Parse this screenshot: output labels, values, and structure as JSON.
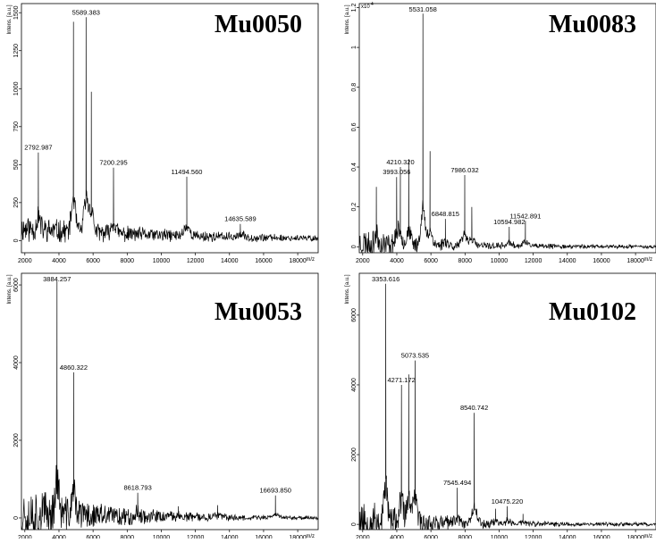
{
  "chart_data": [
    {
      "type": "line",
      "title": "Mu0050",
      "ylabel": "Intens. [a.u.]",
      "xlabel": "m/z",
      "xlim": [
        1800,
        19200
      ],
      "ylim": [
        -80,
        1560
      ],
      "xticks": [
        2000,
        4000,
        6000,
        8000,
        10000,
        12000,
        14000,
        16000,
        18000
      ],
      "yticks": [
        0,
        250,
        500,
        750,
        1000,
        1250,
        1500
      ],
      "y_exponent": "",
      "noise": {
        "base": 80,
        "decay": 10000,
        "amp": 110,
        "seed": 11
      },
      "peaks": [
        {
          "x": 2792.987,
          "y": 580,
          "label": "2792.987"
        },
        {
          "x": 4850,
          "y": 1440,
          "label": ""
        },
        {
          "x": 5589.383,
          "y": 1470,
          "label": "5589.383"
        },
        {
          "x": 5900,
          "y": 980,
          "label": ""
        },
        {
          "x": 7200.295,
          "y": 480,
          "label": "7200.295"
        },
        {
          "x": 11494.56,
          "y": 420,
          "label": "11494.560"
        },
        {
          "x": 14635.589,
          "y": 110,
          "label": "14635.589"
        }
      ],
      "grid": false,
      "legend": "none"
    },
    {
      "type": "line",
      "title": "Mu0083",
      "ylabel": "Intens. [a.u.]",
      "xlabel": "m/z",
      "xlim": [
        1800,
        19200
      ],
      "ylim": [
        -0.03,
        1.22
      ],
      "xticks": [
        2000,
        4000,
        6000,
        8000,
        10000,
        12000,
        14000,
        16000,
        18000
      ],
      "yticks": [
        0.0,
        0.2,
        0.4,
        0.6,
        0.8,
        1.0,
        1.2
      ],
      "y_exponent": "x10",
      "y_exponent_power": "4",
      "noise": {
        "base": 0.02,
        "decay": 5000,
        "amp": 0.09,
        "seed": 23
      },
      "peaks": [
        {
          "x": 2800,
          "y": 0.3,
          "label": ""
        },
        {
          "x": 3993.056,
          "y": 0.35,
          "label": "3993.056"
        },
        {
          "x": 4210.32,
          "y": 0.4,
          "label": "4210.320"
        },
        {
          "x": 4700,
          "y": 0.44,
          "label": ""
        },
        {
          "x": 5531.058,
          "y": 1.17,
          "label": "5531.058"
        },
        {
          "x": 5950,
          "y": 0.48,
          "label": ""
        },
        {
          "x": 6848.815,
          "y": 0.14,
          "label": "6848.815"
        },
        {
          "x": 7986.032,
          "y": 0.36,
          "label": "7986.032"
        },
        {
          "x": 8400,
          "y": 0.2,
          "label": ""
        },
        {
          "x": 10594.982,
          "y": 0.1,
          "label": "10594.982"
        },
        {
          "x": 11542.891,
          "y": 0.13,
          "label": "11542.891"
        }
      ],
      "grid": false,
      "legend": "none"
    },
    {
      "type": "line",
      "title": "Mu0053",
      "ylabel": "Intens. [a.u.]",
      "xlabel": "m/z",
      "xlim": [
        1800,
        19200
      ],
      "ylim": [
        -300,
        6300
      ],
      "xticks": [
        2000,
        4000,
        6000,
        8000,
        10000,
        12000,
        14000,
        16000,
        18000
      ],
      "yticks": [
        0,
        2000,
        4000,
        6000
      ],
      "y_exponent": "",
      "noise": {
        "base": 150,
        "decay": 5000,
        "amp": 950,
        "seed": 37
      },
      "peaks": [
        {
          "x": 3884.257,
          "y": 6100,
          "label": "3884.257"
        },
        {
          "x": 4860.322,
          "y": 3750,
          "label": "4860.322"
        },
        {
          "x": 8618.793,
          "y": 650,
          "label": "8618.793"
        },
        {
          "x": 11000,
          "y": 300,
          "label": ""
        },
        {
          "x": 13300,
          "y": 330,
          "label": ""
        },
        {
          "x": 16693.85,
          "y": 580,
          "label": "16693.850"
        }
      ],
      "grid": false,
      "legend": "none"
    },
    {
      "type": "line",
      "title": "Mu0102",
      "ylabel": "Intens. [a.u.]",
      "xlabel": "m/z",
      "xlim": [
        1800,
        19200
      ],
      "ylim": [
        -150,
        7200
      ],
      "xticks": [
        2000,
        4000,
        6000,
        8000,
        10000,
        12000,
        14000,
        16000,
        18000
      ],
      "yticks": [
        0,
        2000,
        4000,
        6000
      ],
      "y_exponent": "",
      "noise": {
        "base": 120,
        "decay": 4500,
        "amp": 800,
        "seed": 53
      },
      "peaks": [
        {
          "x": 3353.616,
          "y": 6900,
          "label": "3353.616"
        },
        {
          "x": 4271.172,
          "y": 4000,
          "label": "4271.172"
        },
        {
          "x": 4700,
          "y": 4300,
          "label": ""
        },
        {
          "x": 5073.535,
          "y": 4700,
          "label": "5073.535"
        },
        {
          "x": 7545.494,
          "y": 1050,
          "label": "7545.494"
        },
        {
          "x": 8540.742,
          "y": 3200,
          "label": "8540.742"
        },
        {
          "x": 9800,
          "y": 450,
          "label": ""
        },
        {
          "x": 10475.22,
          "y": 520,
          "label": "10475.220"
        },
        {
          "x": 11400,
          "y": 300,
          "label": ""
        }
      ],
      "grid": false,
      "legend": "none"
    }
  ]
}
